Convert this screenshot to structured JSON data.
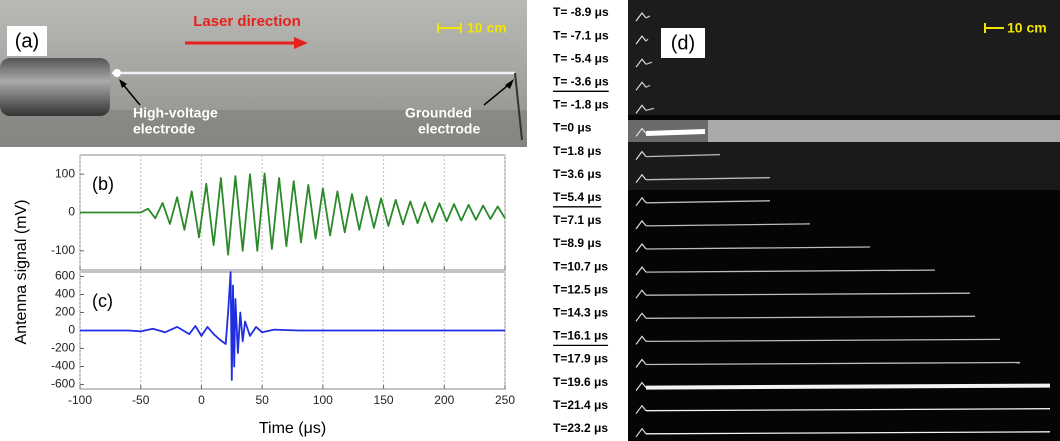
{
  "panel_a": {
    "label": "(a)",
    "arrow_text": "Laser direction",
    "scale": "10 cm",
    "hv_electrode": [
      "High-voltage",
      "electrode"
    ],
    "ground_electrode": [
      "Grounded",
      "electrode"
    ]
  },
  "chart_data": [
    {
      "type": "line",
      "panel_label": "(b)",
      "ylabel": "Antenna signal (mV)",
      "x": [
        -100,
        -70,
        -50,
        -44,
        -38,
        -32,
        -26,
        -20,
        -14,
        -8,
        -2,
        4,
        10,
        16,
        22,
        28,
        34,
        40,
        46,
        52,
        58,
        64,
        70,
        76,
        82,
        88,
        94,
        100,
        106,
        112,
        118,
        124,
        130,
        136,
        142,
        148,
        154,
        160,
        166,
        172,
        178,
        184,
        190,
        196,
        202,
        208,
        214,
        220,
        226,
        232,
        238,
        244,
        250
      ],
      "series": [
        {
          "color": "#2a8a2a",
          "values": [
            0,
            0,
            0,
            10,
            -15,
            25,
            -30,
            40,
            -45,
            55,
            -65,
            75,
            -85,
            90,
            -110,
            95,
            -100,
            100,
            -100,
            102,
            -95,
            90,
            -88,
            82,
            -78,
            72,
            -68,
            63,
            -60,
            55,
            -52,
            48,
            -45,
            42,
            -40,
            37,
            -35,
            33,
            -31,
            29,
            -28,
            26,
            -25,
            24,
            -23,
            22,
            -21,
            20,
            -19,
            18,
            -17,
            16,
            -15
          ]
        }
      ],
      "xlim": [
        -100,
        250
      ],
      "xticks": [
        -100,
        -50,
        0,
        50,
        100,
        150,
        200,
        250
      ],
      "ylim": [
        -150,
        150
      ],
      "yticks": [
        -100,
        0,
        100
      ],
      "grid": "x"
    },
    {
      "type": "line",
      "panel_label": "(c)",
      "xlabel": "Time (μs)",
      "x": [
        -100,
        -60,
        -50,
        -40,
        -30,
        -20,
        -10,
        -5,
        0,
        5,
        10,
        15,
        20,
        22,
        24,
        25,
        26,
        27,
        28,
        30,
        32,
        34,
        36,
        40,
        45,
        50,
        60,
        80,
        250
      ],
      "series": [
        {
          "color": "#1f2ee0",
          "values": [
            0,
            0,
            -10,
            20,
            -20,
            40,
            -40,
            50,
            -60,
            40,
            -40,
            -100,
            -150,
            200,
            650,
            -550,
            500,
            -400,
            350,
            -250,
            200,
            -120,
            100,
            -60,
            40,
            -20,
            10,
            0,
            0
          ]
        }
      ],
      "xlim": [
        -100,
        250
      ],
      "xticks": [
        -100,
        -50,
        0,
        50,
        100,
        150,
        200,
        250
      ],
      "ylim": [
        -650,
        650
      ],
      "yticks": [
        600,
        400,
        200,
        0,
        -200,
        -400,
        -600
      ],
      "grid": "x"
    }
  ],
  "panel_d": {
    "label": "(d)",
    "scale": "10 cm",
    "frames": [
      "T= -8.9 μs",
      "T= -7.1 μs",
      "T= -5.4 μs",
      "T= -3.6 μs",
      "T= -1.8 μs",
      "T=0 μs",
      "T=1.8 μs",
      "T=3.6 μs",
      "T=5.4 μs",
      "T=7.1 μs",
      "T=8.9 μs",
      "T=10.7 μs",
      "T=12.5 μs",
      "T=14.3 μs",
      "T=16.1 μs",
      "T=17.9 μs",
      "T=19.6 μs",
      "T=21.4 μs",
      "T=23.2 μs"
    ],
    "underlined": [
      3,
      8,
      14
    ]
  }
}
